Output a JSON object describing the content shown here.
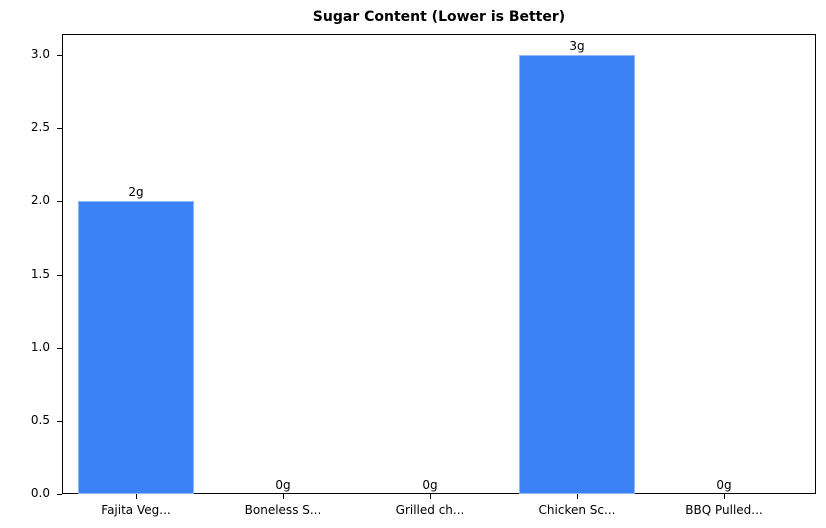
{
  "chart_data": {
    "type": "bar",
    "title": "Sugar Content (Lower is Better)",
    "xlabel": "",
    "ylabel": "",
    "categories": [
      "Fajita Veg...",
      "Boneless S...",
      "Grilled ch...",
      "Chicken Sc...",
      "BBQ Pulled..."
    ],
    "values": [
      2,
      0,
      0,
      3,
      0
    ],
    "value_labels": [
      "2g",
      "0g",
      "0g",
      "3g",
      "0g"
    ],
    "ylim": [
      0,
      3.15
    ],
    "yticks": [
      "0.0",
      "0.5",
      "1.0",
      "1.5",
      "2.0",
      "2.5",
      "3.0"
    ],
    "grid": false,
    "legend": null,
    "bar_color": "#3b82f6"
  }
}
